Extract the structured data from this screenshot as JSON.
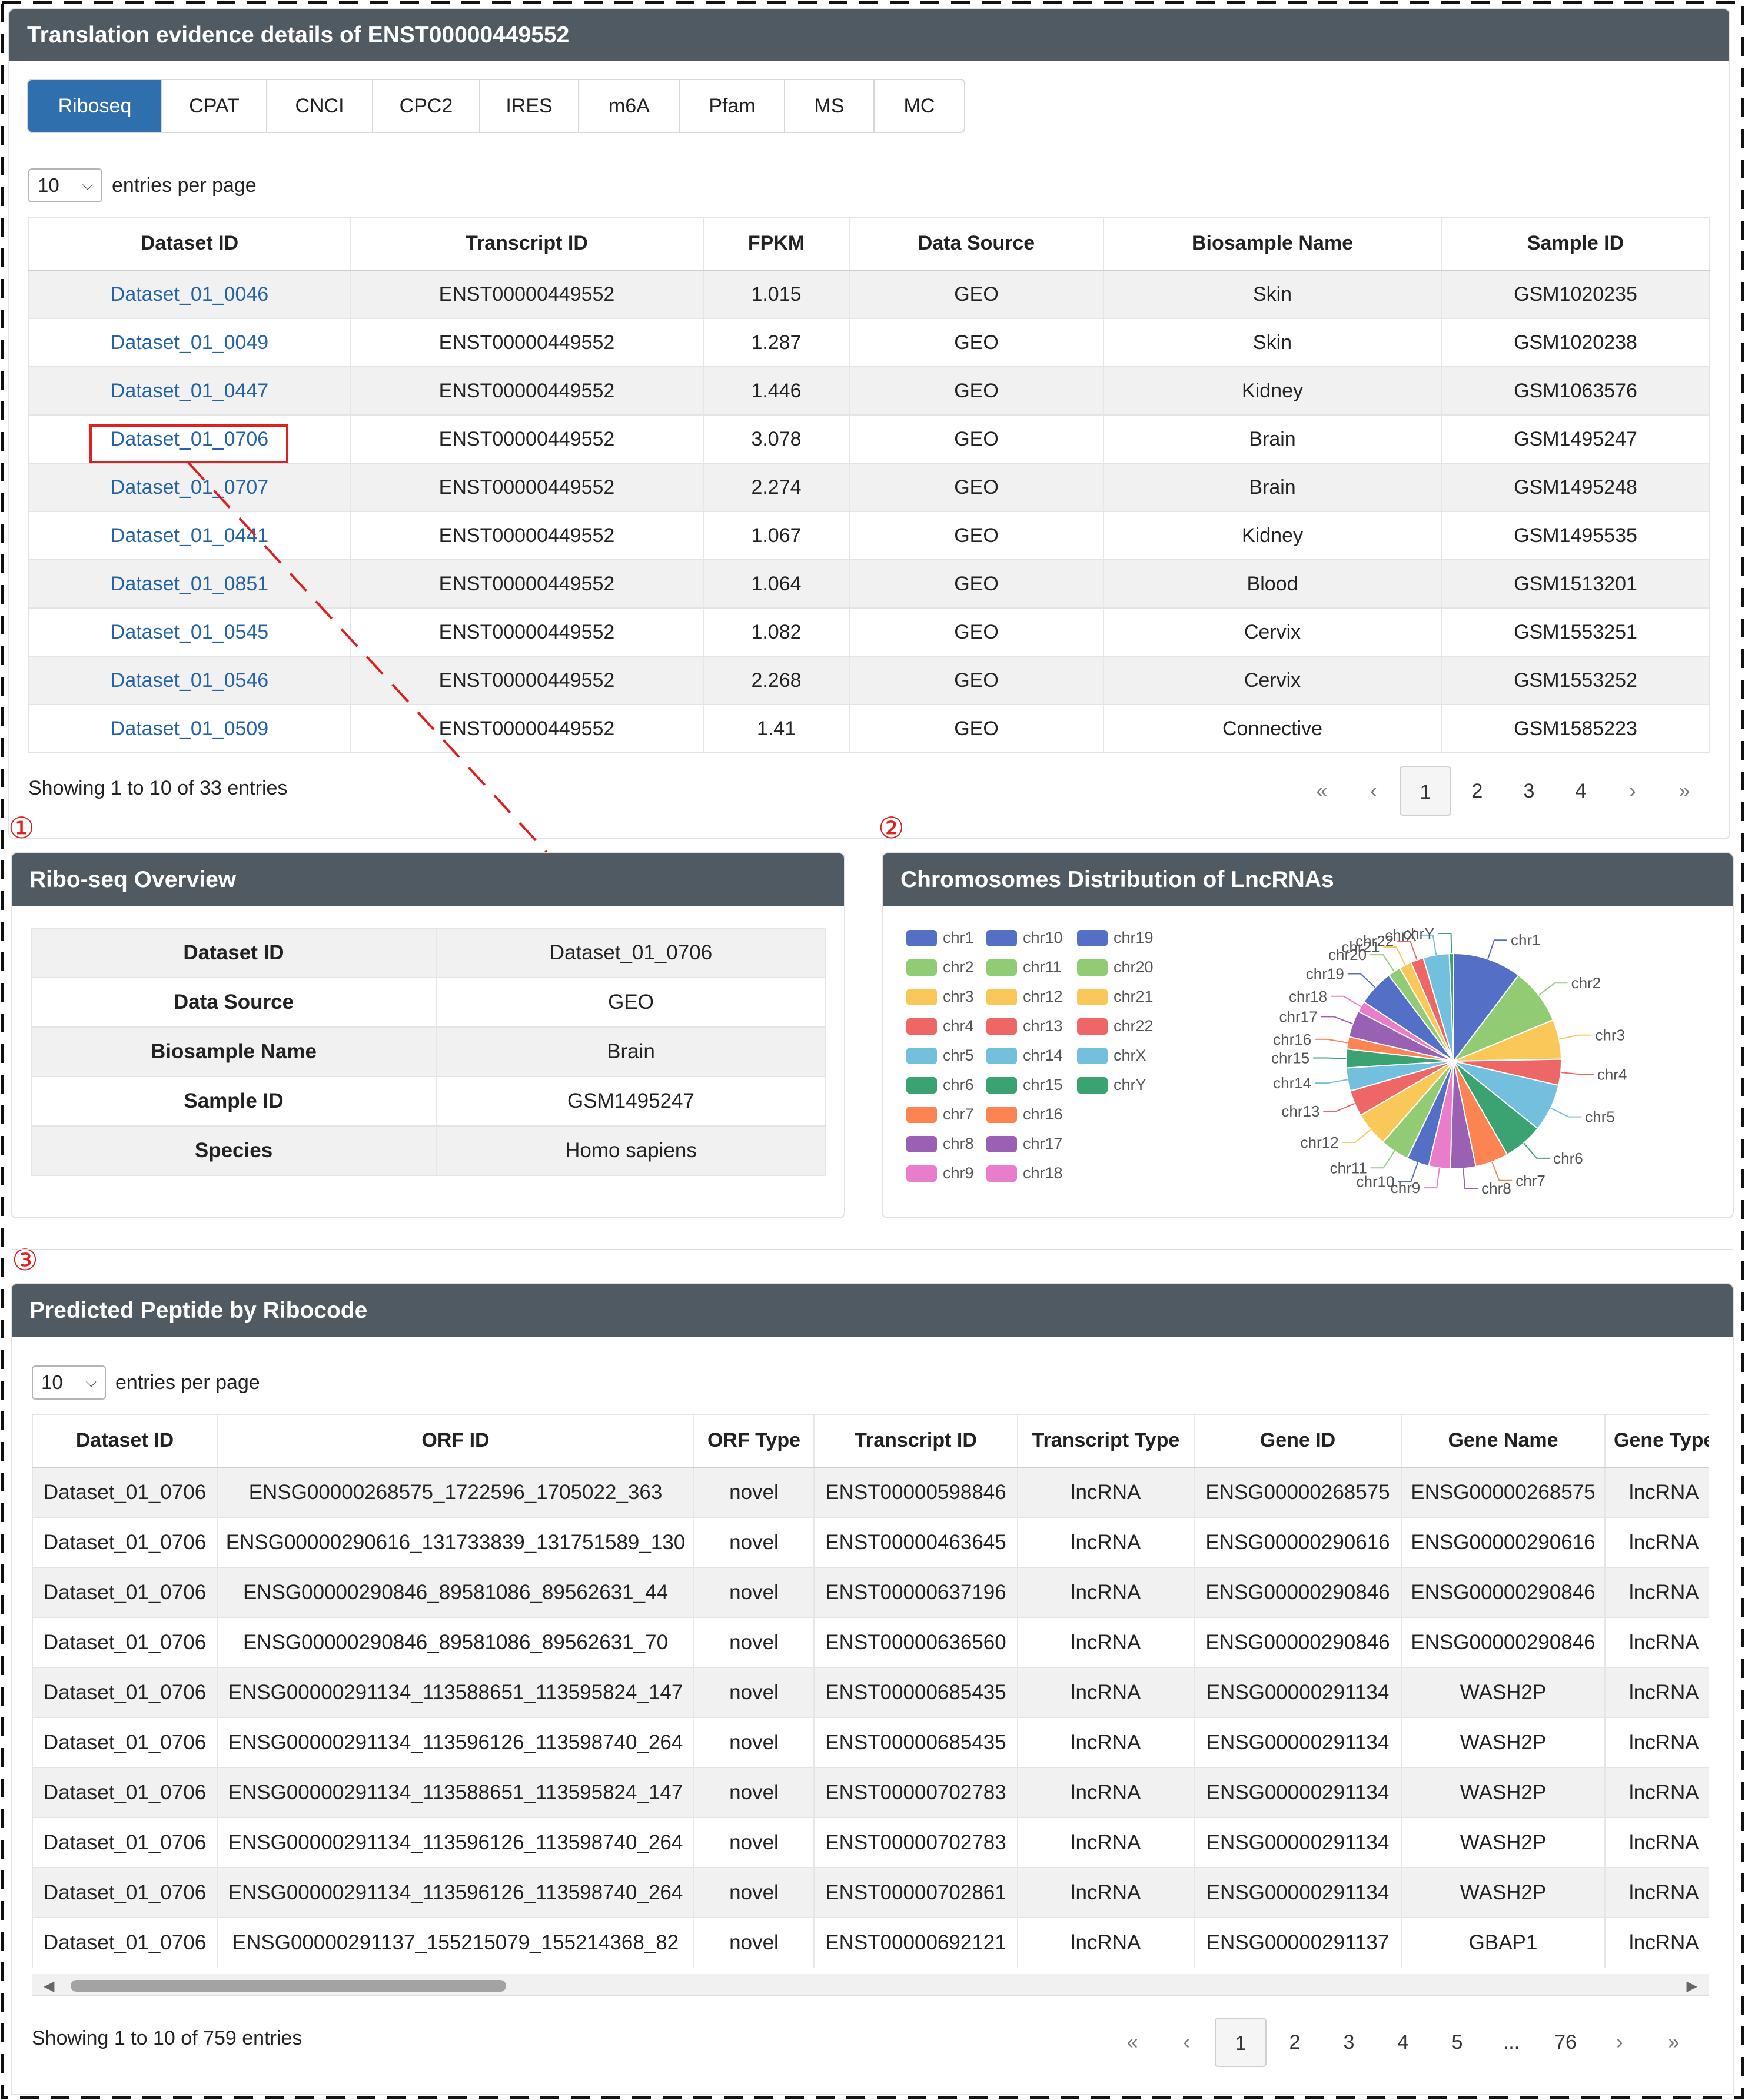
{
  "main_panel": {
    "title": "Translation evidence details of ENST00000449552"
  },
  "tabs": [
    {
      "label": "Riboseq",
      "active": true
    },
    {
      "label": "CPAT"
    },
    {
      "label": "CNCI"
    },
    {
      "label": "CPC2"
    },
    {
      "label": "IRES"
    },
    {
      "label": "m6A"
    },
    {
      "label": "Pfam"
    },
    {
      "label": "MS"
    },
    {
      "label": "MC"
    }
  ],
  "riboseq_table": {
    "length_value": "10",
    "length_label": "entries per page",
    "columns": [
      "Dataset ID",
      "Transcript ID",
      "FPKM",
      "Data Source",
      "Biosample Name",
      "Sample ID"
    ],
    "rows": [
      [
        "Dataset_01_0046",
        "ENST00000449552",
        "1.015",
        "GEO",
        "Skin",
        "GSM1020235"
      ],
      [
        "Dataset_01_0049",
        "ENST00000449552",
        "1.287",
        "GEO",
        "Skin",
        "GSM1020238"
      ],
      [
        "Dataset_01_0447",
        "ENST00000449552",
        "1.446",
        "GEO",
        "Kidney",
        "GSM1063576"
      ],
      [
        "Dataset_01_0706",
        "ENST00000449552",
        "3.078",
        "GEO",
        "Brain",
        "GSM1495247"
      ],
      [
        "Dataset_01_0707",
        "ENST00000449552",
        "2.274",
        "GEO",
        "Brain",
        "GSM1495248"
      ],
      [
        "Dataset_01_0441",
        "ENST00000449552",
        "1.067",
        "GEO",
        "Kidney",
        "GSM1495535"
      ],
      [
        "Dataset_01_0851",
        "ENST00000449552",
        "1.064",
        "GEO",
        "Blood",
        "GSM1513201"
      ],
      [
        "Dataset_01_0545",
        "ENST00000449552",
        "1.082",
        "GEO",
        "Cervix",
        "GSM1553251"
      ],
      [
        "Dataset_01_0546",
        "ENST00000449552",
        "2.268",
        "GEO",
        "Cervix",
        "GSM1553252"
      ],
      [
        "Dataset_01_0509",
        "ENST00000449552",
        "1.41",
        "GEO",
        "Connective",
        "GSM1585223"
      ]
    ],
    "info": "Showing 1 to 10 of 33 entries",
    "pager": [
      "«",
      "‹",
      "1",
      "2",
      "3",
      "4",
      "›",
      "»"
    ],
    "current_page": "1"
  },
  "markers": {
    "one": "①",
    "two": "②",
    "three": "③"
  },
  "overview": {
    "title": "Ribo-seq Overview",
    "rows": [
      [
        "Dataset ID",
        "Dataset_01_0706"
      ],
      [
        "Data Source",
        "GEO"
      ],
      [
        "Biosample Name",
        "Brain"
      ],
      [
        "Sample ID",
        "GSM1495247"
      ],
      [
        "Species",
        "Homo sapiens"
      ]
    ]
  },
  "chart_data": {
    "type": "pie",
    "title": "Chromosomes Distribution of LncRNAs",
    "legend_position": "left",
    "categories": [
      "chr1",
      "chr2",
      "chr3",
      "chr4",
      "chr5",
      "chr6",
      "chr7",
      "chr8",
      "chr9",
      "chr10",
      "chr11",
      "chr12",
      "chr13",
      "chr14",
      "chr15",
      "chr16",
      "chr17",
      "chr18",
      "chr19",
      "chr20",
      "chr21",
      "chr22",
      "chrX",
      "chrY"
    ],
    "values": [
      9.5,
      7.8,
      5.5,
      3.6,
      6.6,
      5.5,
      4.6,
      3.5,
      3.0,
      3.1,
      4.0,
      4.8,
      3.6,
      3.2,
      2.6,
      1.7,
      3.7,
      1.5,
      5.0,
      1.8,
      1.7,
      1.8,
      3.6,
      0.6
    ],
    "colors": [
      "#5470c6",
      "#91cc75",
      "#fac858",
      "#ee6666",
      "#73c0de",
      "#3ba272",
      "#fc8452",
      "#9a60b4",
      "#ea7ccc"
    ]
  },
  "peptide": {
    "title": "Predicted Peptide by Ribocode",
    "length_value": "10",
    "length_label": "entries per page",
    "columns": [
      "Dataset ID",
      "ORF ID",
      "ORF Type",
      "Transcript ID",
      "Transcript Type",
      "Gene ID",
      "Gene Name",
      "Gene Type"
    ],
    "rows": [
      [
        "Dataset_01_0706",
        "ENSG00000268575_1722596_1705022_363",
        "novel",
        "ENST00000598846",
        "lncRNA",
        "ENSG00000268575",
        "ENSG00000268575",
        "lncRNA"
      ],
      [
        "Dataset_01_0706",
        "ENSG00000290616_131733839_131751589_130",
        "novel",
        "ENST00000463645",
        "lncRNA",
        "ENSG00000290616",
        "ENSG00000290616",
        "lncRNA"
      ],
      [
        "Dataset_01_0706",
        "ENSG00000290846_89581086_89562631_44",
        "novel",
        "ENST00000637196",
        "lncRNA",
        "ENSG00000290846",
        "ENSG00000290846",
        "lncRNA"
      ],
      [
        "Dataset_01_0706",
        "ENSG00000290846_89581086_89562631_70",
        "novel",
        "ENST00000636560",
        "lncRNA",
        "ENSG00000290846",
        "ENSG00000290846",
        "lncRNA"
      ],
      [
        "Dataset_01_0706",
        "ENSG00000291134_113588651_113595824_147",
        "novel",
        "ENST00000685435",
        "lncRNA",
        "ENSG00000291134",
        "WASH2P",
        "lncRNA"
      ],
      [
        "Dataset_01_0706",
        "ENSG00000291134_113596126_113598740_264",
        "novel",
        "ENST00000685435",
        "lncRNA",
        "ENSG00000291134",
        "WASH2P",
        "lncRNA"
      ],
      [
        "Dataset_01_0706",
        "ENSG00000291134_113588651_113595824_147",
        "novel",
        "ENST00000702783",
        "lncRNA",
        "ENSG00000291134",
        "WASH2P",
        "lncRNA"
      ],
      [
        "Dataset_01_0706",
        "ENSG00000291134_113596126_113598740_264",
        "novel",
        "ENST00000702783",
        "lncRNA",
        "ENSG00000291134",
        "WASH2P",
        "lncRNA"
      ],
      [
        "Dataset_01_0706",
        "ENSG00000291134_113596126_113598740_264",
        "novel",
        "ENST00000702861",
        "lncRNA",
        "ENSG00000291134",
        "WASH2P",
        "lncRNA"
      ],
      [
        "Dataset_01_0706",
        "ENSG00000291137_155215079_155214368_82",
        "novel",
        "ENST00000692121",
        "lncRNA",
        "ENSG00000291137",
        "GBAP1",
        "lncRNA"
      ]
    ],
    "info": "Showing 1 to 10 of 759 entries",
    "pager": [
      "«",
      "‹",
      "1",
      "2",
      "3",
      "4",
      "5",
      "...",
      "76",
      "›",
      "»"
    ],
    "current_page": "1"
  }
}
